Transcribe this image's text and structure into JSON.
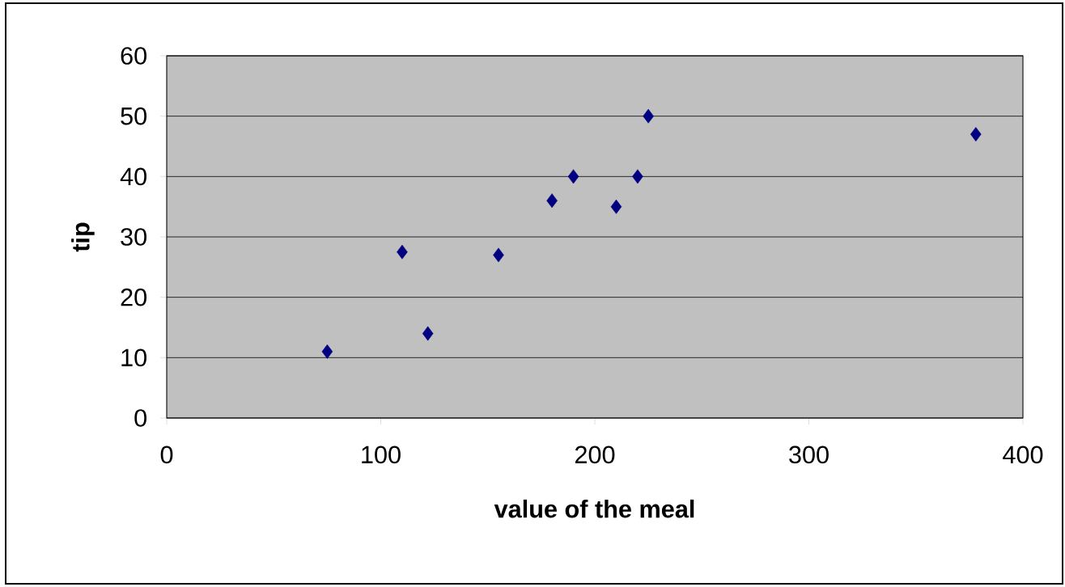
{
  "chart_data": {
    "type": "scatter",
    "xlabel": "value of the meal",
    "ylabel": "tip",
    "x": [
      75,
      110,
      122,
      155,
      180,
      190,
      210,
      220,
      225,
      378
    ],
    "values": [
      11,
      27.5,
      14,
      27,
      36,
      40,
      35,
      40,
      50,
      47
    ],
    "color": "#000080",
    "marker": "diamond",
    "grid": "y",
    "xlim": [
      0,
      400
    ],
    "ylim": [
      0,
      60
    ],
    "xticks": [
      0,
      100,
      200,
      300,
      400
    ],
    "yticks": [
      0,
      10,
      20,
      30,
      40,
      50,
      60
    ]
  }
}
